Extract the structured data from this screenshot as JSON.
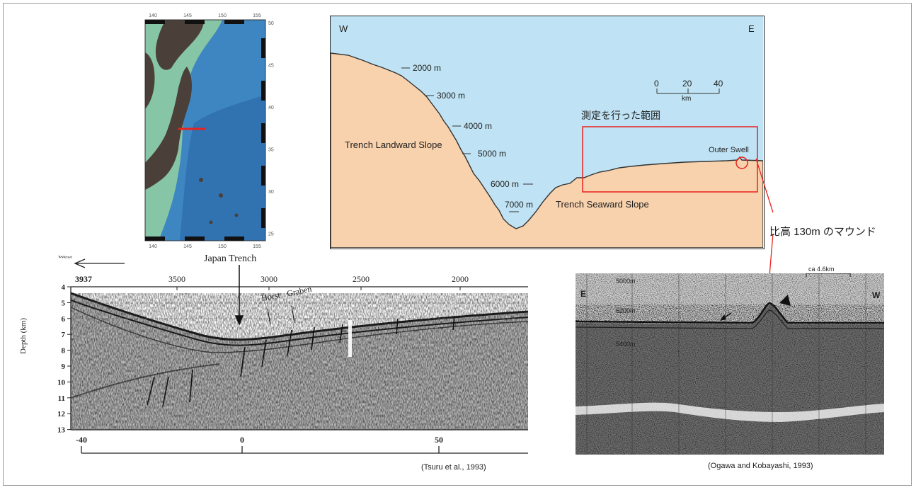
{
  "map": {
    "lon_ticks": [
      "140",
      "145",
      "150",
      "155"
    ],
    "lat_ticks": [
      "50",
      "45",
      "40",
      "35",
      "30",
      "25"
    ],
    "colors": {
      "land": "#4a3f39",
      "shelf": "#86c6a6",
      "deep": "#3d86c2",
      "track": "#e8231f"
    }
  },
  "profile": {
    "west_label": "W",
    "east_label": "E",
    "depth_labels": [
      "2000 m",
      "3000 m",
      "4000 m",
      "5000 m",
      "6000 m",
      "7000 m"
    ],
    "landward_label": "Trench Landward Slope",
    "seaward_label": "Trench Seaward Slope",
    "swell_label": "Outer Swell",
    "scale_ticks": [
      "0",
      "20",
      "40"
    ],
    "scale_unit": "km",
    "range_label": "測定を行った範囲",
    "mound_label": "比高 130m のマウンド",
    "colors": {
      "sea": "#bfe3f4",
      "seafloor": "#f8d1ad",
      "highlight": "#e8231f"
    }
  },
  "seismic_left": {
    "direction_label": "West",
    "top_ticks": [
      "3937",
      "3500",
      "3000",
      "2500",
      "2000"
    ],
    "depth_axis_title": "Depth (km)",
    "depth_ticks": [
      "4",
      "5",
      "6",
      "7",
      "8",
      "9",
      "10",
      "11",
      "12",
      "13"
    ],
    "bottom_ticks": [
      "-40",
      "0",
      "50"
    ],
    "trench_label": "Japan Trench",
    "horst_label": "Horst",
    "graben_label": "Graben",
    "citation": "(Tsuru et al., 1993)"
  },
  "seismic_right": {
    "east_label": "E",
    "west_label": "W",
    "scale_label": "ca 4.6km",
    "depth_labels": [
      "5000m",
      "5200m",
      "5400m"
    ],
    "citation": "(Ogawa and Kobayashi, 1993)"
  }
}
